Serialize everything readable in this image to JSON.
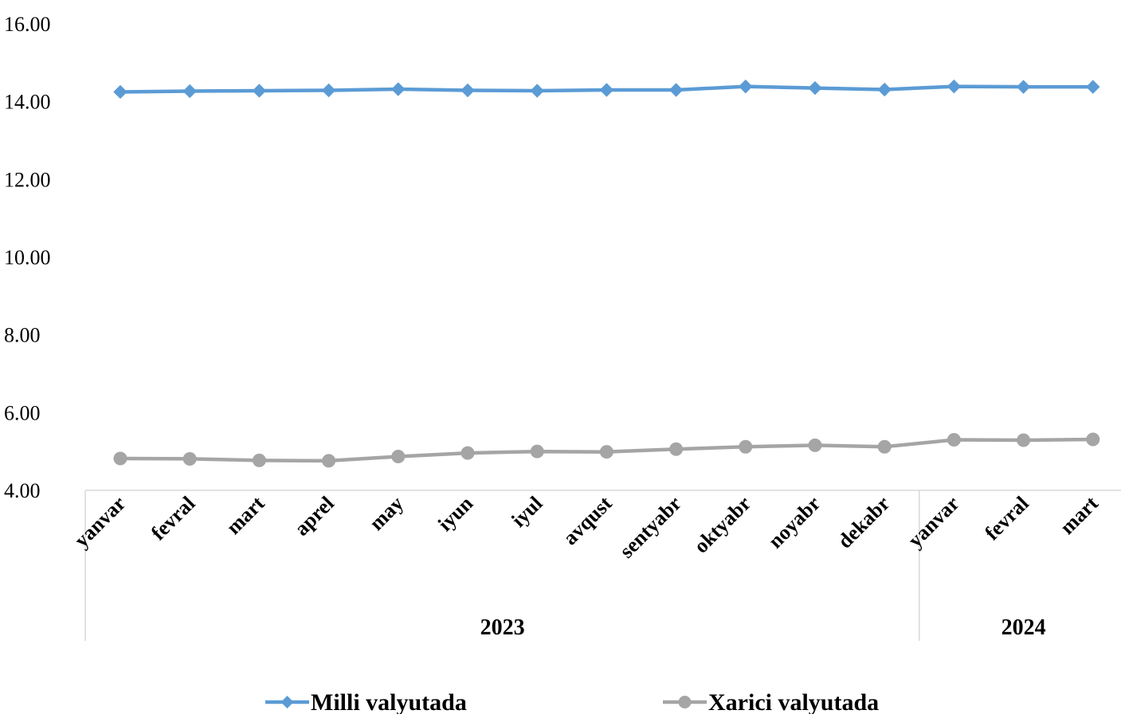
{
  "chart_data": {
    "type": "line",
    "categories": [
      "yanvar",
      "fevral",
      "mart",
      "aprel",
      "may",
      "iyun",
      "iyul",
      "avqust",
      "sentyabr",
      "oktyabr",
      "noyabr",
      "dekabr",
      "yanvar",
      "fevral",
      "mart"
    ],
    "groups": [
      {
        "label": "2023",
        "count": 12
      },
      {
        "label": "2024",
        "count": 3
      }
    ],
    "yticks": [
      "4.00",
      "6.00",
      "8.00",
      "10.00",
      "12.00",
      "14.00",
      "16.00"
    ],
    "ylim": [
      4,
      16
    ],
    "grid": false,
    "legend_position": "bottom",
    "series": [
      {
        "name": "Milli valyutada",
        "color": "#5B9BD5",
        "marker": "diamond",
        "values": [
          14.25,
          14.27,
          14.28,
          14.29,
          14.32,
          14.29,
          14.28,
          14.3,
          14.3,
          14.39,
          14.35,
          14.31,
          14.39,
          14.38,
          14.38
        ]
      },
      {
        "name": "Xarici valyutada",
        "color": "#A5A5A5",
        "marker": "circle",
        "values": [
          4.82,
          4.81,
          4.77,
          4.76,
          4.87,
          4.96,
          5.0,
          4.99,
          5.06,
          5.12,
          5.16,
          5.12,
          5.3,
          5.29,
          5.31
        ]
      }
    ]
  }
}
